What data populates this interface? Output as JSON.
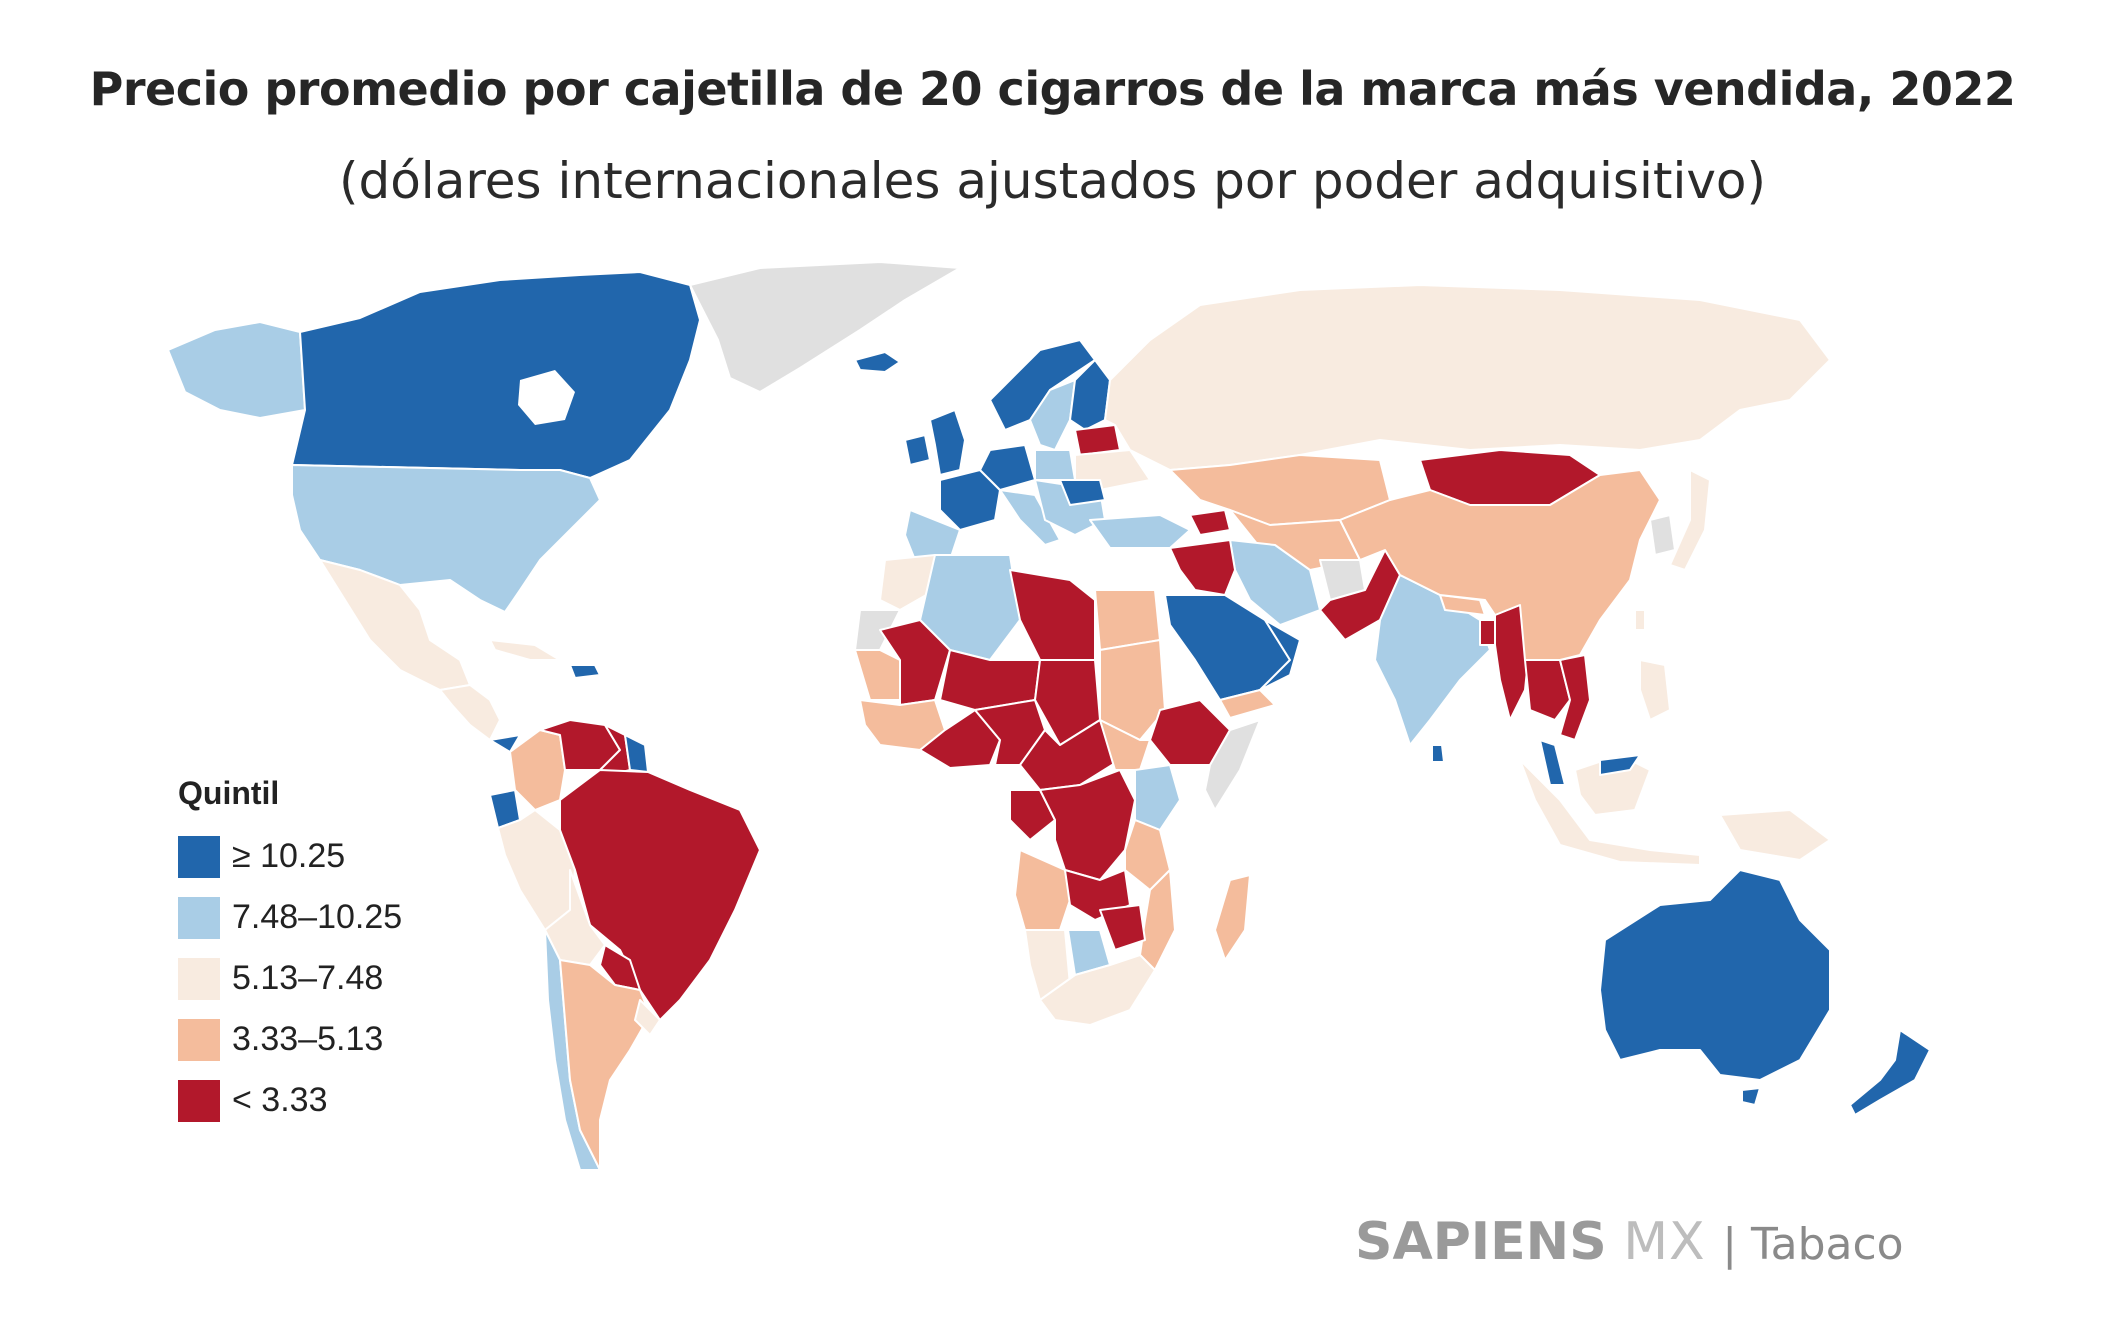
{
  "header": {
    "title": "Precio promedio por cajetilla de 20 cigarros de la marca más vendida, 2022",
    "subtitle": "(dólares internacionales ajustados por poder adquisitivo)"
  },
  "legend": {
    "title": "Quintil",
    "items": [
      {
        "label": "≥ 10.25",
        "color": "#2166ac"
      },
      {
        "label": "7.48–10.25",
        "color": "#a9cde6"
      },
      {
        "label": "5.13–7.48",
        "color": "#f8ebe0"
      },
      {
        "label": "3.33–5.13",
        "color": "#f4bc9c"
      },
      {
        "label": "< 3.33",
        "color": "#b2182b"
      }
    ]
  },
  "colors": {
    "no_data": "#e0e0e0",
    "border": "#ffffff"
  },
  "footer": {
    "brand_bold": "SAPIENS",
    "brand_light": "MX",
    "section": "| Tabaco"
  }
}
